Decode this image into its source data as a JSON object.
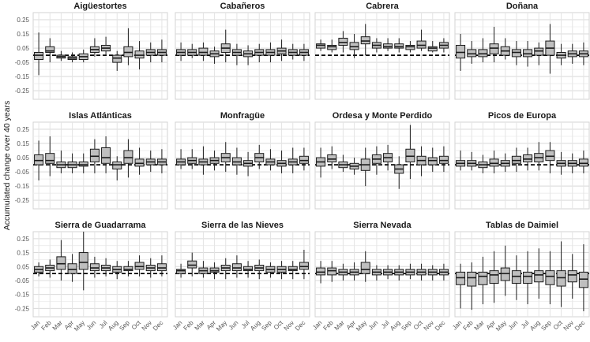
{
  "chart_data": {
    "type": "boxplot",
    "ylabel": "Accumulated change over 40 years",
    "months": [
      "Jan",
      "Feb",
      "Mar",
      "Apr",
      "May",
      "Jun",
      "Jul",
      "Aug",
      "Sep",
      "Oct",
      "Nov",
      "Dec"
    ],
    "y_ticks": [
      0.25,
      0.15,
      0.05,
      -0.05,
      -0.15,
      -0.25
    ],
    "y_tick_labels": [
      "0.25",
      "0.15",
      "0.05",
      "-0.05",
      "-0.15",
      "-0.25"
    ],
    "ylim": [
      -0.31,
      0.3
    ],
    "reference_line": 0,
    "grid": true,
    "box_color": "#bfbfbf",
    "parks": [
      {
        "name": "Aigüestortes",
        "boxes": [
          [
            -0.14,
            -0.03,
            0.0,
            0.02,
            0.16
          ],
          [
            -0.05,
            0.02,
            0.03,
            0.06,
            0.12
          ],
          [
            -0.04,
            -0.02,
            -0.01,
            0.0,
            0.03
          ],
          [
            -0.05,
            -0.03,
            -0.02,
            -0.01,
            0.02
          ],
          [
            -0.05,
            -0.03,
            -0.01,
            0.01,
            0.04
          ],
          [
            -0.01,
            0.02,
            0.04,
            0.06,
            0.12
          ],
          [
            0.0,
            0.03,
            0.05,
            0.07,
            0.13
          ],
          [
            -0.11,
            -0.05,
            -0.02,
            0.0,
            0.03
          ],
          [
            -0.07,
            -0.01,
            0.02,
            0.06,
            0.19
          ],
          [
            -0.1,
            -0.02,
            0.0,
            0.03,
            0.1
          ],
          [
            -0.05,
            0.0,
            0.02,
            0.04,
            0.09
          ],
          [
            -0.05,
            0.0,
            0.02,
            0.04,
            0.11
          ]
        ]
      },
      {
        "name": "Cabañeros",
        "boxes": [
          [
            -0.04,
            0.0,
            0.02,
            0.04,
            0.09
          ],
          [
            -0.02,
            0.0,
            0.02,
            0.04,
            0.08
          ],
          [
            -0.04,
            0.0,
            0.02,
            0.05,
            0.09
          ],
          [
            -0.06,
            -0.01,
            0.01,
            0.03,
            0.06
          ],
          [
            -0.05,
            0.02,
            0.05,
            0.08,
            0.18
          ],
          [
            -0.07,
            0.0,
            0.02,
            0.04,
            0.08
          ],
          [
            -0.07,
            -0.01,
            0.01,
            0.03,
            0.07
          ],
          [
            -0.05,
            0.0,
            0.02,
            0.04,
            0.08
          ],
          [
            -0.05,
            0.0,
            0.02,
            0.04,
            0.09
          ],
          [
            -0.04,
            0.01,
            0.03,
            0.05,
            0.11
          ],
          [
            -0.03,
            0.0,
            0.02,
            0.04,
            0.08
          ],
          [
            -0.04,
            0.0,
            0.02,
            0.04,
            0.08
          ]
        ]
      },
      {
        "name": "Cabrera",
        "boxes": [
          [
            0.03,
            0.05,
            0.07,
            0.08,
            0.11
          ],
          [
            0.02,
            0.04,
            0.06,
            0.07,
            0.11
          ],
          [
            0.02,
            0.07,
            0.09,
            0.12,
            0.17
          ],
          [
            -0.02,
            0.04,
            0.06,
            0.09,
            0.15
          ],
          [
            0.0,
            0.08,
            0.1,
            0.13,
            0.22
          ],
          [
            0.02,
            0.05,
            0.07,
            0.09,
            0.12
          ],
          [
            0.03,
            0.05,
            0.06,
            0.08,
            0.12
          ],
          [
            0.02,
            0.05,
            0.06,
            0.08,
            0.12
          ],
          [
            0.02,
            0.04,
            0.06,
            0.07,
            0.1
          ],
          [
            0.03,
            0.05,
            0.07,
            0.1,
            0.18
          ],
          [
            0.02,
            0.03,
            0.05,
            0.06,
            0.1
          ],
          [
            0.02,
            0.05,
            0.07,
            0.09,
            0.12
          ]
        ]
      },
      {
        "name": "Doñana",
        "boxes": [
          [
            -0.11,
            -0.02,
            0.02,
            0.07,
            0.15
          ],
          [
            -0.06,
            -0.01,
            0.01,
            0.04,
            0.1
          ],
          [
            -0.05,
            -0.01,
            0.01,
            0.04,
            0.12
          ],
          [
            -0.05,
            0.01,
            0.05,
            0.08,
            0.2
          ],
          [
            -0.03,
            0.0,
            0.03,
            0.06,
            0.12
          ],
          [
            -0.07,
            -0.01,
            0.02,
            0.04,
            0.1
          ],
          [
            -0.08,
            -0.01,
            0.01,
            0.04,
            0.1
          ],
          [
            -0.07,
            0.0,
            0.03,
            0.05,
            0.09
          ],
          [
            -0.13,
            0.0,
            0.05,
            0.1,
            0.22
          ],
          [
            -0.07,
            -0.02,
            0.0,
            0.02,
            0.08
          ],
          [
            -0.06,
            -0.01,
            0.01,
            0.03,
            0.08
          ],
          [
            -0.07,
            -0.01,
            0.01,
            0.03,
            0.09
          ]
        ]
      },
      {
        "name": "Islas Atlánticas",
        "boxes": [
          [
            -0.11,
            0.0,
            0.03,
            0.07,
            0.17
          ],
          [
            -0.08,
            0.01,
            0.03,
            0.08,
            0.2
          ],
          [
            -0.06,
            -0.02,
            0.0,
            0.02,
            0.1
          ],
          [
            -0.06,
            -0.02,
            0.0,
            0.02,
            0.08
          ],
          [
            -0.06,
            -0.01,
            0.0,
            0.02,
            0.08
          ],
          [
            -0.06,
            0.02,
            0.06,
            0.11,
            0.18
          ],
          [
            -0.06,
            0.01,
            0.05,
            0.12,
            0.2
          ],
          [
            -0.11,
            -0.03,
            0.0,
            0.02,
            0.06
          ],
          [
            -0.09,
            0.01,
            0.05,
            0.1,
            0.18
          ],
          [
            -0.07,
            -0.01,
            0.01,
            0.04,
            0.12
          ],
          [
            -0.05,
            0.0,
            0.02,
            0.04,
            0.1
          ],
          [
            -0.06,
            0.0,
            0.02,
            0.04,
            0.11
          ]
        ]
      },
      {
        "name": "Monfragüe",
        "boxes": [
          [
            -0.03,
            0.0,
            0.02,
            0.04,
            0.11
          ],
          [
            -0.03,
            0.01,
            0.03,
            0.05,
            0.11
          ],
          [
            -0.07,
            0.0,
            0.02,
            0.04,
            0.13
          ],
          [
            -0.04,
            0.01,
            0.03,
            0.05,
            0.1
          ],
          [
            -0.05,
            0.02,
            0.05,
            0.08,
            0.16
          ],
          [
            -0.07,
            0.0,
            0.02,
            0.05,
            0.12
          ],
          [
            -0.08,
            -0.01,
            0.01,
            0.03,
            0.09
          ],
          [
            -0.03,
            0.02,
            0.05,
            0.08,
            0.14
          ],
          [
            -0.04,
            0.0,
            0.02,
            0.04,
            0.11
          ],
          [
            -0.06,
            -0.01,
            0.01,
            0.03,
            0.1
          ],
          [
            -0.06,
            0.0,
            0.02,
            0.04,
            0.12
          ],
          [
            -0.04,
            0.01,
            0.03,
            0.06,
            0.12
          ]
        ]
      },
      {
        "name": "Ordesa y Monte Perdido",
        "boxes": [
          [
            -0.09,
            -0.01,
            0.02,
            0.05,
            0.12
          ],
          [
            -0.03,
            0.02,
            0.04,
            0.07,
            0.13
          ],
          [
            -0.05,
            -0.02,
            0.0,
            0.02,
            0.07
          ],
          [
            -0.07,
            -0.03,
            -0.01,
            0.01,
            0.05
          ],
          [
            -0.15,
            -0.04,
            0.0,
            0.04,
            0.12
          ],
          [
            -0.07,
            0.01,
            0.04,
            0.07,
            0.13
          ],
          [
            -0.04,
            0.02,
            0.05,
            0.08,
            0.14
          ],
          [
            -0.17,
            -0.06,
            -0.03,
            0.0,
            0.06
          ],
          [
            -0.1,
            0.02,
            0.06,
            0.11,
            0.28
          ],
          [
            -0.08,
            0.0,
            0.03,
            0.06,
            0.13
          ],
          [
            -0.05,
            0.0,
            0.03,
            0.05,
            0.12
          ],
          [
            -0.05,
            0.01,
            0.03,
            0.06,
            0.13
          ]
        ]
      },
      {
        "name": "Picos de Europa",
        "boxes": [
          [
            -0.04,
            -0.01,
            0.01,
            0.03,
            0.1
          ],
          [
            -0.04,
            -0.01,
            0.01,
            0.03,
            0.09
          ],
          [
            -0.06,
            -0.02,
            0.0,
            0.02,
            0.07
          ],
          [
            -0.06,
            -0.01,
            0.01,
            0.04,
            0.1
          ],
          [
            -0.05,
            -0.01,
            0.01,
            0.03,
            0.08
          ],
          [
            -0.05,
            0.01,
            0.03,
            0.06,
            0.12
          ],
          [
            -0.04,
            0.02,
            0.04,
            0.07,
            0.12
          ],
          [
            -0.04,
            0.02,
            0.05,
            0.08,
            0.16
          ],
          [
            -0.06,
            0.03,
            0.06,
            0.1,
            0.16
          ],
          [
            -0.07,
            -0.01,
            0.01,
            0.03,
            0.09
          ],
          [
            -0.06,
            -0.01,
            0.01,
            0.03,
            0.08
          ],
          [
            -0.06,
            -0.01,
            0.01,
            0.04,
            0.1
          ]
        ]
      },
      {
        "name": "Sierra de Guadarrama",
        "boxes": [
          [
            -0.02,
            0.01,
            0.03,
            0.05,
            0.08
          ],
          [
            -0.03,
            0.02,
            0.04,
            0.06,
            0.1
          ],
          [
            -0.05,
            0.03,
            0.07,
            0.12,
            0.24
          ],
          [
            -0.06,
            0.0,
            0.03,
            0.07,
            0.14
          ],
          [
            -0.12,
            0.03,
            0.08,
            0.15,
            0.3
          ],
          [
            -0.03,
            0.02,
            0.04,
            0.07,
            0.12
          ],
          [
            -0.02,
            0.02,
            0.04,
            0.06,
            0.11
          ],
          [
            -0.04,
            0.01,
            0.03,
            0.05,
            0.09
          ],
          [
            -0.02,
            0.02,
            0.03,
            0.05,
            0.09
          ],
          [
            -0.02,
            0.03,
            0.05,
            0.08,
            0.13
          ],
          [
            -0.03,
            0.02,
            0.04,
            0.06,
            0.11
          ],
          [
            -0.02,
            0.02,
            0.04,
            0.07,
            0.13
          ]
        ]
      },
      {
        "name": "Sierra de las Nieves",
        "boxes": [
          [
            -0.03,
            0.0,
            0.02,
            0.03,
            0.07
          ],
          [
            -0.02,
            0.04,
            0.06,
            0.09,
            0.15
          ],
          [
            -0.03,
            0.0,
            0.02,
            0.04,
            0.09
          ],
          [
            -0.04,
            0.01,
            0.02,
            0.04,
            0.08
          ],
          [
            -0.04,
            0.02,
            0.04,
            0.06,
            0.11
          ],
          [
            -0.03,
            0.02,
            0.04,
            0.07,
            0.13
          ],
          [
            -0.03,
            0.02,
            0.03,
            0.05,
            0.09
          ],
          [
            -0.04,
            0.02,
            0.04,
            0.06,
            0.1
          ],
          [
            -0.03,
            0.01,
            0.03,
            0.05,
            0.08
          ],
          [
            -0.04,
            0.01,
            0.03,
            0.05,
            0.09
          ],
          [
            -0.04,
            0.02,
            0.03,
            0.05,
            0.09
          ],
          [
            -0.04,
            0.03,
            0.05,
            0.08,
            0.17
          ]
        ]
      },
      {
        "name": "Sierra Nevada",
        "boxes": [
          [
            -0.07,
            -0.01,
            0.01,
            0.04,
            0.09
          ],
          [
            -0.06,
            -0.01,
            0.02,
            0.04,
            0.09
          ],
          [
            -0.05,
            -0.01,
            0.01,
            0.03,
            0.07
          ],
          [
            -0.05,
            -0.01,
            0.01,
            0.03,
            0.08
          ],
          [
            -0.06,
            0.0,
            0.03,
            0.08,
            0.16
          ],
          [
            -0.05,
            -0.01,
            0.01,
            0.03,
            0.06
          ],
          [
            -0.04,
            -0.01,
            0.01,
            0.03,
            0.06
          ],
          [
            -0.05,
            -0.01,
            0.01,
            0.03,
            0.06
          ],
          [
            -0.04,
            -0.01,
            0.01,
            0.03,
            0.07
          ],
          [
            -0.05,
            -0.01,
            0.01,
            0.03,
            0.07
          ],
          [
            -0.05,
            -0.01,
            0.01,
            0.03,
            0.06
          ],
          [
            -0.05,
            -0.01,
            0.01,
            0.03,
            0.07
          ]
        ]
      },
      {
        "name": "Tablas de Daimiel",
        "boxes": [
          [
            -0.25,
            -0.08,
            -0.03,
            0.01,
            0.07
          ],
          [
            -0.26,
            -0.09,
            -0.03,
            0.01,
            0.08
          ],
          [
            -0.22,
            -0.08,
            -0.02,
            0.01,
            0.12
          ],
          [
            -0.21,
            -0.07,
            -0.01,
            0.02,
            0.16
          ],
          [
            -0.16,
            -0.05,
            0.0,
            0.04,
            0.2
          ],
          [
            -0.19,
            -0.07,
            -0.02,
            0.02,
            0.13
          ],
          [
            -0.22,
            -0.07,
            -0.02,
            0.01,
            0.16
          ],
          [
            -0.18,
            -0.06,
            -0.01,
            0.02,
            0.18
          ],
          [
            -0.22,
            -0.08,
            -0.02,
            0.02,
            0.16
          ],
          [
            -0.24,
            -0.09,
            -0.03,
            0.02,
            0.23
          ],
          [
            -0.18,
            -0.06,
            -0.01,
            0.02,
            0.14
          ],
          [
            -0.27,
            -0.1,
            -0.04,
            0.01,
            0.21
          ]
        ]
      }
    ]
  }
}
